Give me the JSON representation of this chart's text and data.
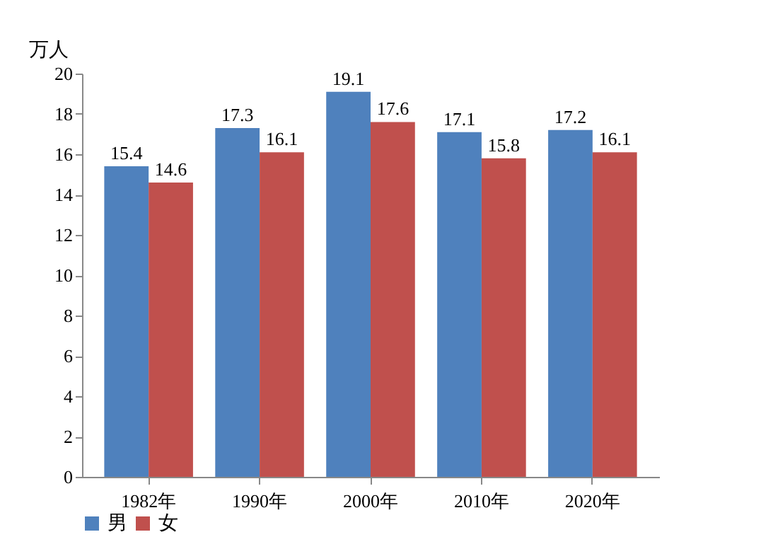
{
  "chart_data": {
    "type": "bar",
    "ylabel": "万人",
    "categories": [
      "1982年",
      "1990年",
      "2000年",
      "2010年",
      "2020年"
    ],
    "series": [
      {
        "name": "男",
        "color": "#4f81bd",
        "values": [
          15.4,
          17.3,
          19.1,
          17.1,
          17.2
        ]
      },
      {
        "name": "女",
        "color": "#c0504d",
        "values": [
          14.6,
          16.1,
          17.6,
          15.8,
          16.1
        ]
      }
    ],
    "ylim": [
      0,
      20
    ],
    "yticks": [
      0,
      2,
      4,
      6,
      8,
      10,
      12,
      14,
      16,
      18,
      20
    ],
    "grid": false,
    "legend": "bottom",
    "data_labels": true
  }
}
